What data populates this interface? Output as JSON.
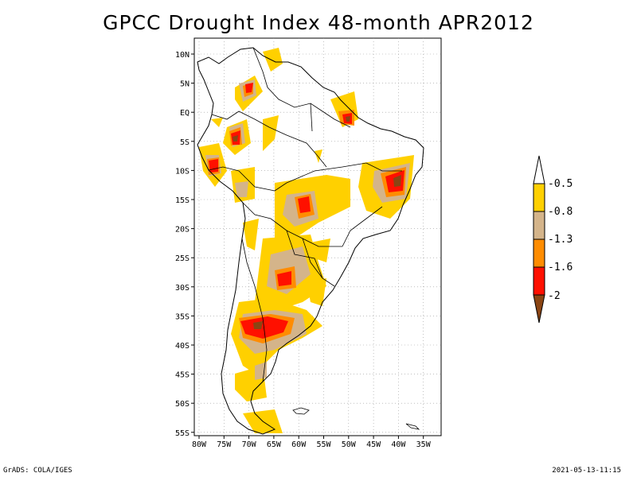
{
  "title": "GPCC Drought Index 48-month APR2012",
  "axes": {
    "lat_labels": [
      "10N",
      "5N",
      "EQ",
      "5S",
      "10S",
      "15S",
      "20S",
      "25S",
      "30S",
      "35S",
      "40S",
      "45S",
      "50S",
      "55S"
    ],
    "lon_labels": [
      "80W",
      "75W",
      "70W",
      "65W",
      "60W",
      "55W",
      "50W",
      "45W",
      "40W",
      "35W"
    ]
  },
  "legend": {
    "labels": [
      "-0.5",
      "-0.8",
      "-1.3",
      "-1.6",
      "-2"
    ],
    "colors": {
      "above": "#ffffff",
      "band1": "#ffd000",
      "band2": "#d4b48a",
      "band3": "#ff8c00",
      "band4": "#ff1000",
      "below": "#8b4513"
    }
  },
  "footer": {
    "left": "GrADS: COLA/IGES",
    "right": "2021-05-13-11:15"
  }
}
